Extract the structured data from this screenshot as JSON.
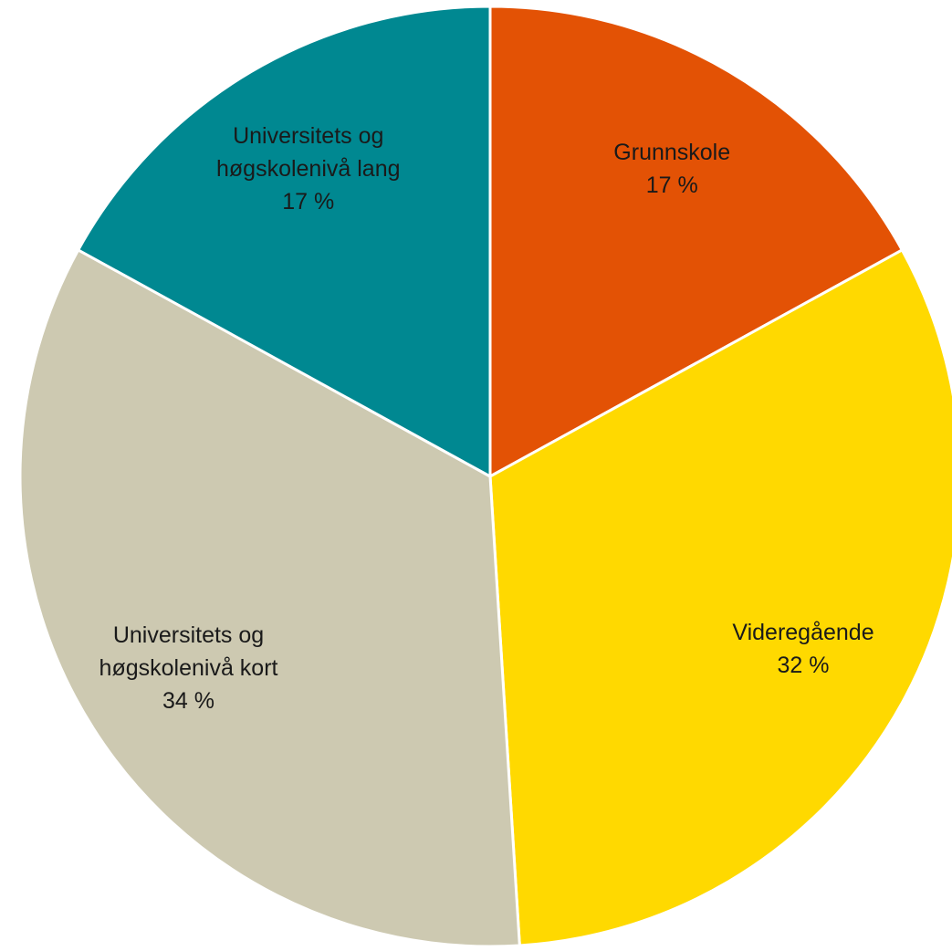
{
  "chart_data": {
    "type": "pie",
    "categories": [
      "Grunnskole",
      "Videregående",
      "Universitets og høgskolenivå kort",
      "Universitets og høgskolenivå lang"
    ],
    "values": [
      17,
      32,
      34,
      17
    ],
    "value_labels": [
      "17 %",
      "32 %",
      "34 %",
      "17 %"
    ],
    "colors": [
      "#e35205",
      "#ffd900",
      "#cdc9b1",
      "#008891"
    ]
  }
}
